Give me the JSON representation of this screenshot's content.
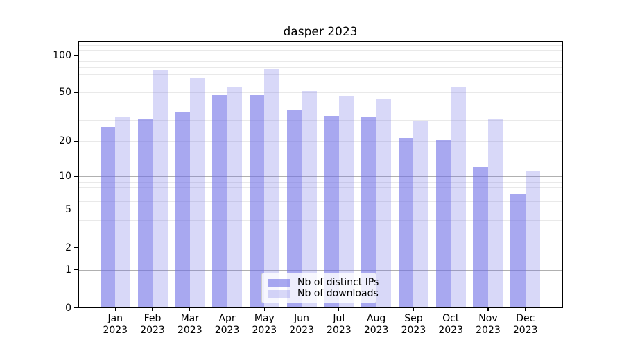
{
  "chart_data": {
    "type": "bar",
    "title": "dasper 2023",
    "categories": [
      "Jan 2023",
      "Feb 2023",
      "Mar 2023",
      "Apr 2023",
      "May 2023",
      "Jun 2023",
      "Jul 2023",
      "Aug 2023",
      "Sep 2023",
      "Oct 2023",
      "Nov 2023",
      "Dec 2023"
    ],
    "series": [
      {
        "name": "Nb of distinct IPs",
        "color": "rgba(110,110,230,0.60)",
        "values": [
          26,
          30,
          34,
          47,
          47,
          36,
          32,
          31,
          21,
          20,
          12,
          7
        ]
      },
      {
        "name": "Nb of downloads",
        "color": "rgba(110,110,230,0.27)",
        "values": [
          31,
          75,
          65,
          55,
          77,
          51,
          46,
          44,
          29,
          54,
          30,
          11
        ]
      }
    ],
    "yscale": "log1p",
    "ylim": [
      0,
      130
    ],
    "ytick_labels": [
      "100",
      "50",
      "20",
      "10",
      "5",
      "2",
      "1",
      "0"
    ],
    "grid": {
      "major_at": [
        1,
        10,
        100
      ],
      "minor_at": [
        2,
        3,
        4,
        5,
        6,
        7,
        8,
        9,
        20,
        30,
        40,
        50,
        60,
        70,
        80,
        90,
        110,
        120
      ],
      "major_color": "#b0b0b0",
      "minor_color": "#e9e9e9"
    },
    "legend_position": "lower center",
    "axis_color": "#000000",
    "text_color": "#000000"
  }
}
